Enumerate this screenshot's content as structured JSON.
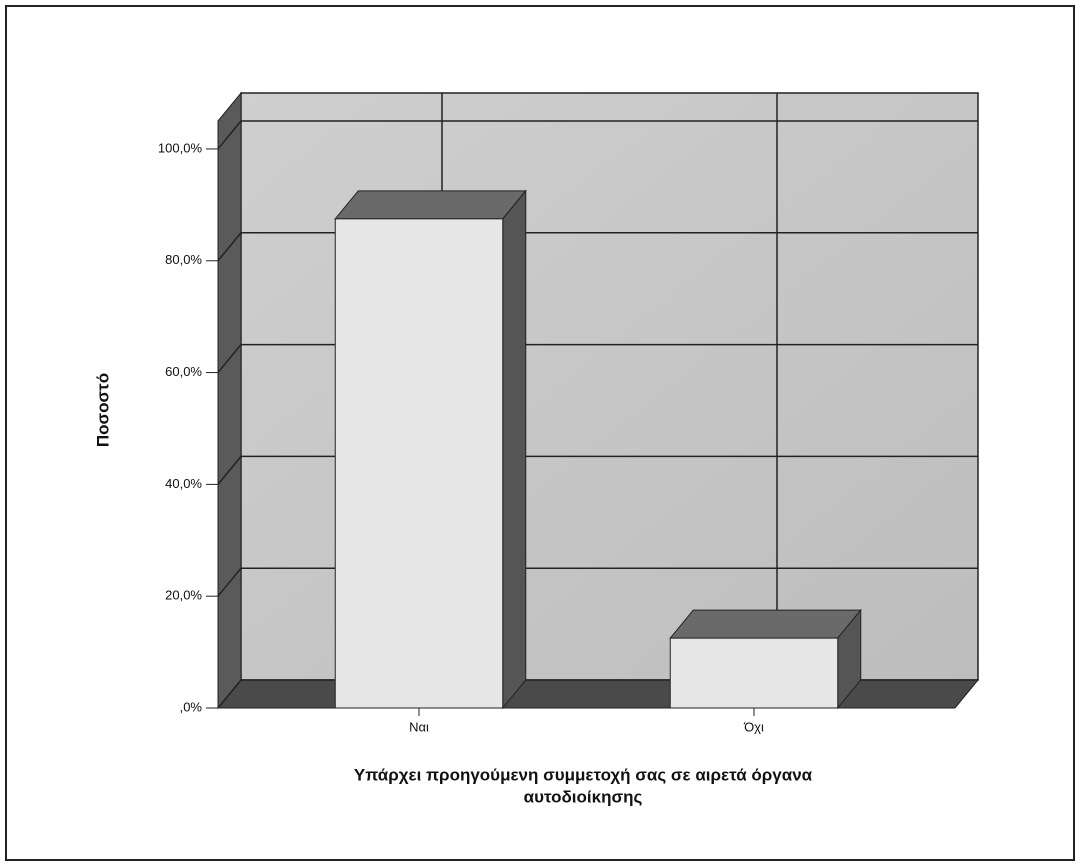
{
  "chart_data": {
    "type": "bar3d",
    "y_label": "Ποσοστό",
    "x_label": [
      "Υπάρχει προηγούμενη συμμετοχή σας σε αιρετά όργανα",
      "αυτοδιοίκησης"
    ],
    "categories": [
      "Ναι",
      "Όχι"
    ],
    "values": [
      87.5,
      12.5
    ],
    "color": "#e6e6e6",
    "ylim": [
      0,
      105
    ],
    "yticks": [
      {
        "value": 0,
        "label": ",0%"
      },
      {
        "value": 20,
        "label": "20,0%"
      },
      {
        "value": 40,
        "label": "40,0%"
      },
      {
        "value": 60,
        "label": "60,0%"
      },
      {
        "value": 80,
        "label": "80,0%"
      },
      {
        "value": 100,
        "label": "100,0%"
      }
    ],
    "grid": true
  }
}
